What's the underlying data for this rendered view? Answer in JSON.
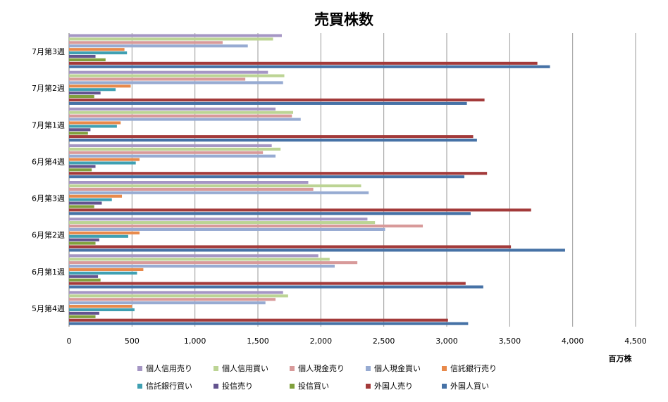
{
  "chart_data": {
    "type": "bar",
    "orientation": "horizontal",
    "title": "売買株数",
    "unit_label": "百万株",
    "xlim": [
      0,
      4500
    ],
    "x_ticks": [
      "0",
      "500",
      "1,000",
      "1,500",
      "2,000",
      "2,500",
      "3,000",
      "3,500",
      "4,000",
      "4,500"
    ],
    "grid": true,
    "legend_position": "bottom",
    "categories": [
      "7月第3週",
      "7月第2週",
      "7月第1週",
      "6月第4週",
      "6月第3週",
      "6月第2週",
      "6月第1週",
      "5月第4週"
    ],
    "series": [
      {
        "name": "個人信用売り",
        "color": "#a596c4",
        "values": [
          1690,
          1580,
          1640,
          1610,
          1900,
          2370,
          1980,
          1700
        ]
      },
      {
        "name": "個人信用買い",
        "color": "#bcd494",
        "values": [
          1620,
          1710,
          1780,
          1680,
          2320,
          2430,
          2070,
          1740
        ]
      },
      {
        "name": "個人現金売り",
        "color": "#d89a9a",
        "values": [
          1220,
          1400,
          1770,
          1540,
          1940,
          2810,
          2290,
          1640
        ]
      },
      {
        "name": "個人現金買い",
        "color": "#97abd2",
        "values": [
          1420,
          1700,
          1840,
          1640,
          2380,
          2510,
          2110,
          1560
        ]
      },
      {
        "name": "信託銀行売り",
        "color": "#e8894a",
        "values": [
          440,
          490,
          410,
          560,
          420,
          560,
          590,
          500
        ]
      },
      {
        "name": "信託銀行買い",
        "color": "#3fa0b2",
        "values": [
          460,
          370,
          380,
          530,
          340,
          470,
          540,
          520
        ]
      },
      {
        "name": "投信売り",
        "color": "#63538e",
        "values": [
          210,
          250,
          170,
          210,
          260,
          240,
          230,
          240
        ]
      },
      {
        "name": "投信買い",
        "color": "#80a03c",
        "values": [
          290,
          200,
          150,
          180,
          200,
          210,
          250,
          210
        ]
      },
      {
        "name": "外国人売り",
        "color": "#a33a3a",
        "values": [
          3720,
          3300,
          3210,
          3320,
          3670,
          3510,
          3150,
          3010
        ]
      },
      {
        "name": "外国人買い",
        "color": "#4672a6",
        "values": [
          3820,
          3160,
          3240,
          3140,
          3190,
          3940,
          3290,
          3170
        ]
      }
    ]
  }
}
